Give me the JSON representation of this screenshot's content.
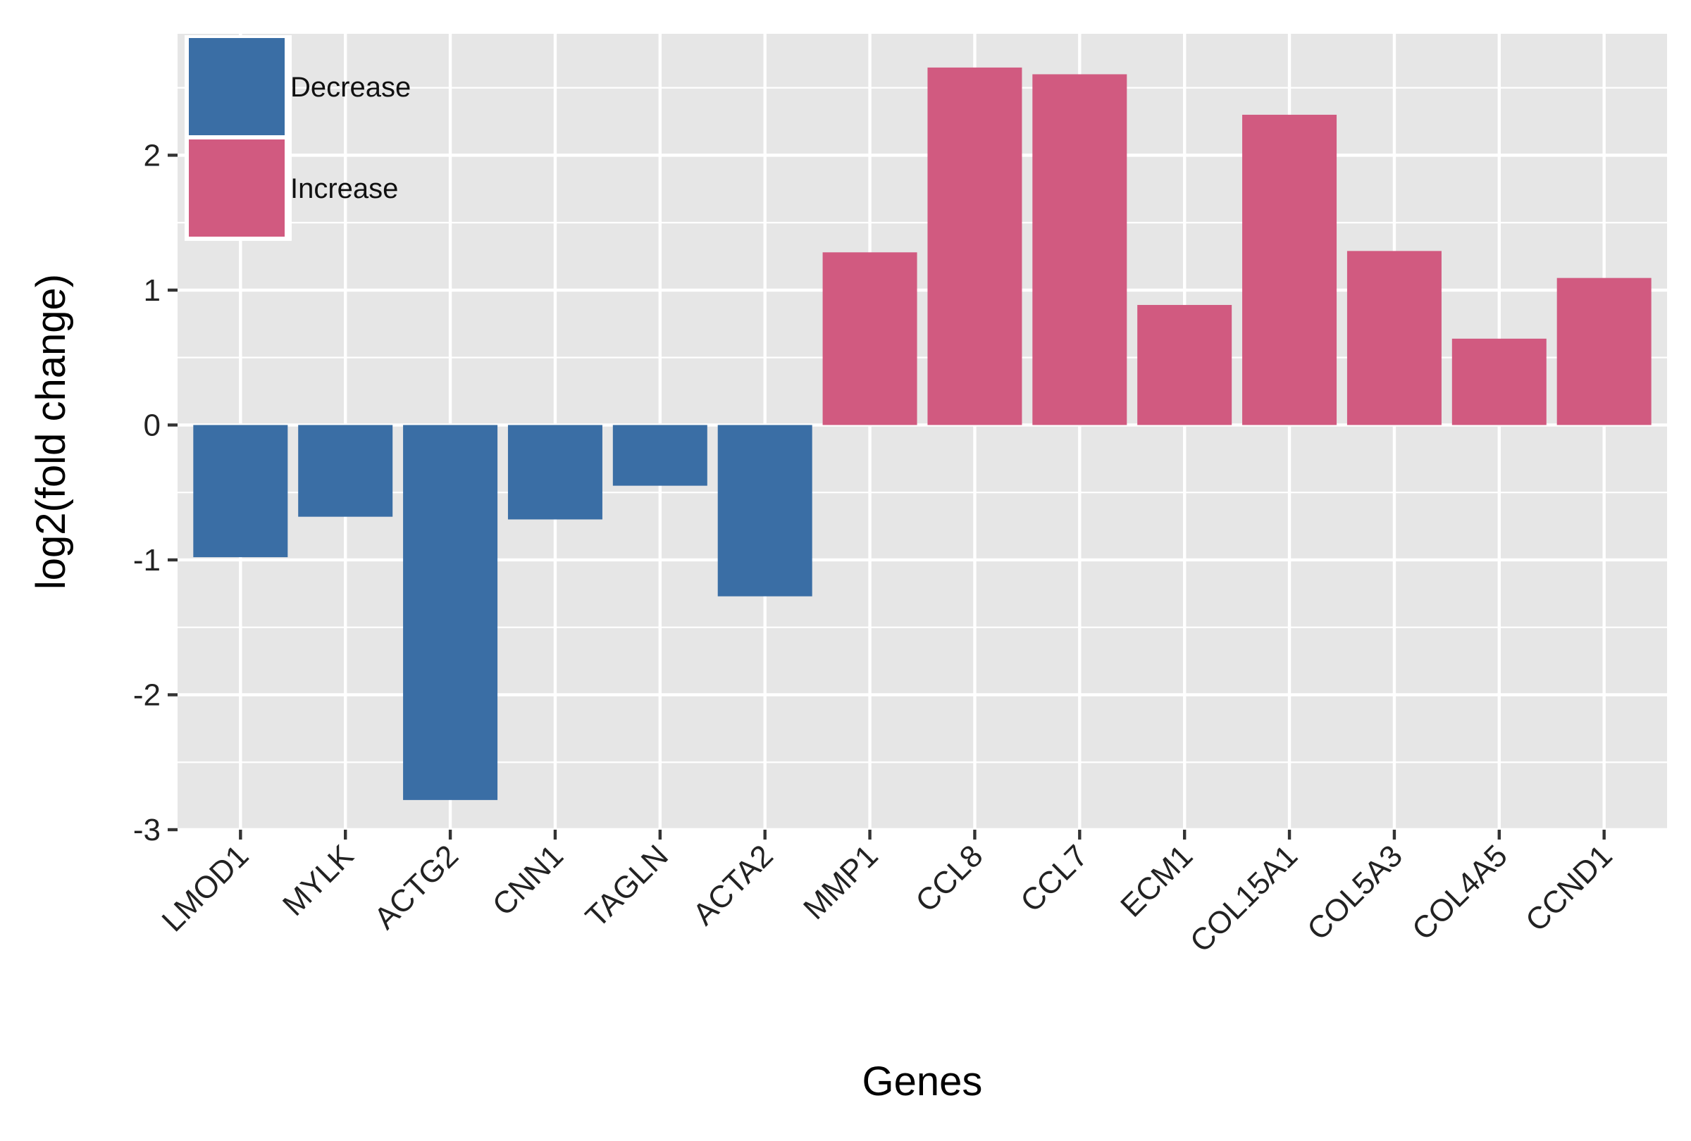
{
  "chart_data": {
    "type": "bar",
    "title": "",
    "xlabel": "Genes",
    "ylabel": "log2(fold change)",
    "ylim": [
      -3,
      2.9
    ],
    "yticks": [
      "-3",
      "-2",
      "-1",
      "0",
      "1",
      "2"
    ],
    "grid": true,
    "legend_position": "top-left",
    "categories": [
      "LMOD1",
      "MYLK",
      "ACTG2",
      "CNN1",
      "TAGLN",
      "ACTA2",
      "MMP1",
      "CCL8",
      "CCL7",
      "ECM1",
      "COL15A1",
      "COL5A3",
      "COL4A5",
      "CCND1"
    ],
    "values": [
      -0.98,
      -0.68,
      -2.78,
      -0.7,
      -0.45,
      -1.27,
      1.28,
      2.65,
      2.6,
      0.89,
      2.3,
      1.29,
      0.64,
      1.09
    ],
    "groups": [
      "Decrease",
      "Decrease",
      "Decrease",
      "Decrease",
      "Decrease",
      "Decrease",
      "Increase",
      "Increase",
      "Increase",
      "Increase",
      "Increase",
      "Increase",
      "Increase",
      "Increase"
    ],
    "legend": [
      {
        "name": "Decrease",
        "color": "#3a6ea5"
      },
      {
        "name": "Increase",
        "color": "#d15a80"
      }
    ],
    "colors": {
      "panel": "#e6e6e6",
      "grid": "#ffffff"
    }
  }
}
